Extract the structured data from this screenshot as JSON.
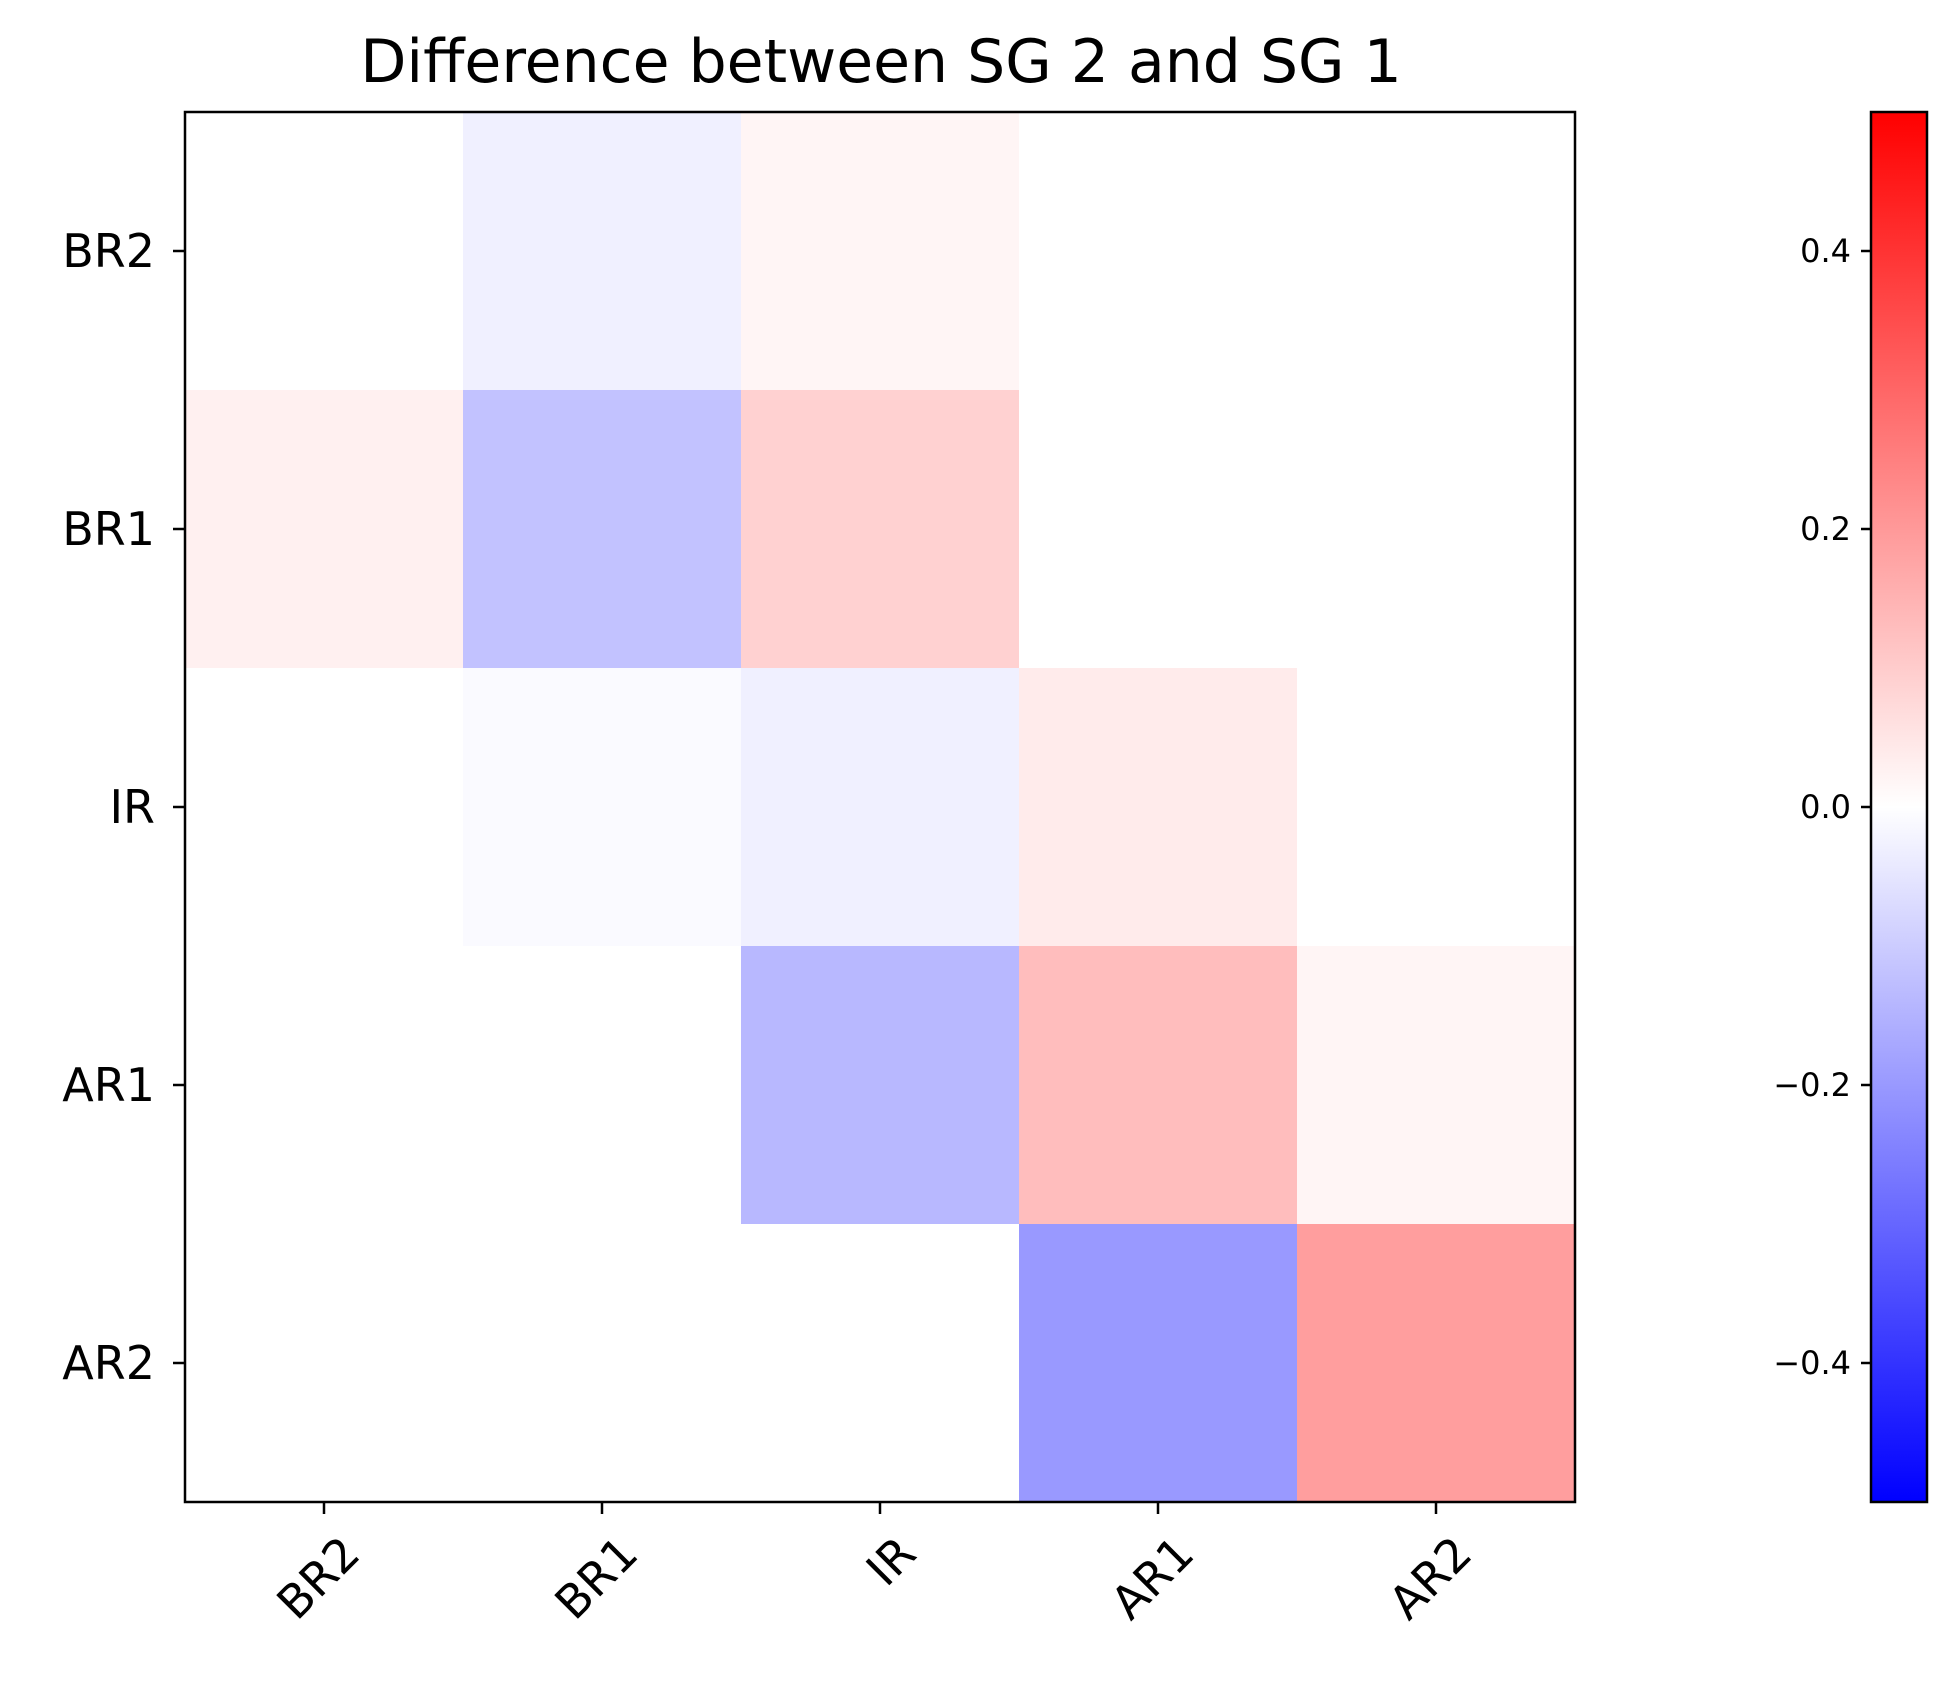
{
  "chart_data": {
    "type": "heatmap",
    "title": "Difference between SG 2 and SG 1",
    "xlabel": "",
    "ylabel": "",
    "x_categories": [
      "BR2",
      "BR1",
      "IR",
      "AR1",
      "AR2"
    ],
    "y_categories": [
      "BR2",
      "BR1",
      "IR",
      "AR1",
      "AR2"
    ],
    "values": [
      [
        0.0,
        -0.03,
        0.02,
        0.0,
        0.0
      ],
      [
        0.03,
        -0.12,
        0.09,
        0.0,
        0.0
      ],
      [
        0.0,
        -0.01,
        -0.03,
        0.04,
        0.0
      ],
      [
        0.0,
        0.0,
        -0.14,
        0.13,
        0.02
      ],
      [
        0.0,
        0.0,
        0.0,
        -0.2,
        0.19
      ]
    ],
    "colormap": "bwr",
    "vmin": -0.5,
    "vmax": 0.5,
    "colorbar_ticks": [
      "-0.4",
      "-0.2",
      "0.0",
      "0.2",
      "0.4"
    ],
    "colorbar_tick_values": [
      -0.4,
      -0.2,
      0.0,
      0.2,
      0.4
    ],
    "colors": {
      "low": "#0000ff",
      "mid": "#ffffff",
      "high": "#ff0000"
    }
  }
}
